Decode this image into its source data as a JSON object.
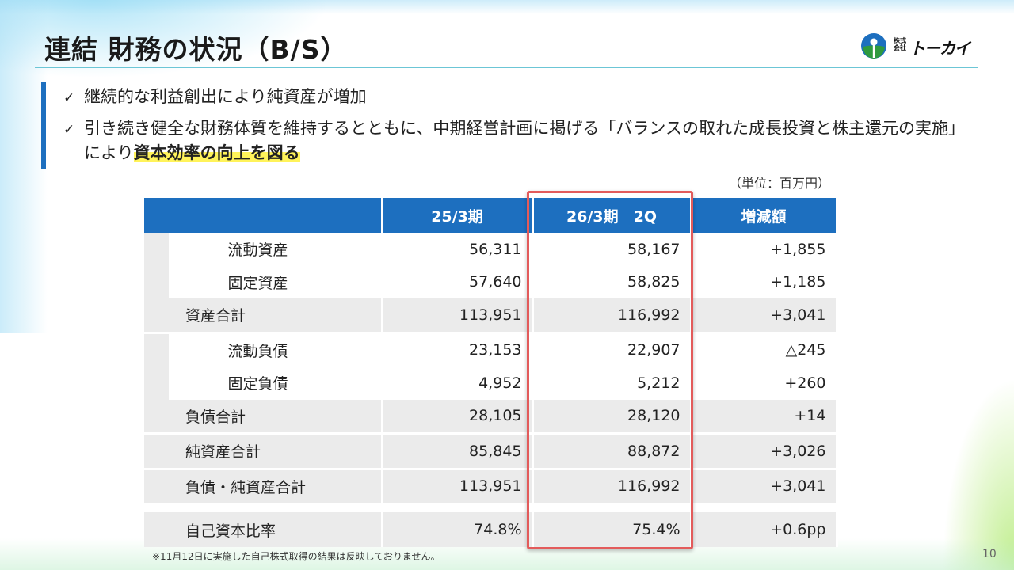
{
  "title": "連結 財務の状況（B/S）",
  "logo": {
    "sub": "株式会社",
    "name": "トーカイ"
  },
  "bullets": [
    {
      "check": "✓",
      "text": "継続的な利益創出により純資産が増加",
      "highlight": ""
    },
    {
      "check": "✓",
      "text": "引き続き健全な財務体質を維持するとともに、中期経営計画に掲げる「バランスの取れた成長投資と株主還元の実施」により",
      "highlight": "資本効率の向上を図る"
    }
  ],
  "unit": "（単位：百万円）",
  "table": {
    "headers": [
      "",
      "25/3期",
      "26/3期　2Q",
      "増減額"
    ],
    "rows": [
      {
        "label": "流動資産",
        "prev": "56,311",
        "curr": "58,167",
        "diff": "+1,855"
      },
      {
        "label": "固定資産",
        "prev": "57,640",
        "curr": "58,825",
        "diff": "+1,185"
      },
      {
        "label": "資産合計",
        "prev": "113,951",
        "curr": "116,992",
        "diff": "+3,041"
      },
      {
        "label": "流動負債",
        "prev": "23,153",
        "curr": "22,907",
        "diff": "△245"
      },
      {
        "label": "固定負債",
        "prev": "4,952",
        "curr": "5,212",
        "diff": "+260"
      },
      {
        "label": "負債合計",
        "prev": "28,105",
        "curr": "28,120",
        "diff": "+14"
      },
      {
        "label": "純資産合計",
        "prev": "85,845",
        "curr": "88,872",
        "diff": "+3,026"
      },
      {
        "label": "負債・純資産合計",
        "prev": "113,951",
        "curr": "116,992",
        "diff": "+3,041"
      },
      {
        "label": "自己資本比率",
        "prev": "74.8%",
        "curr": "75.4%",
        "diff": "+0.6pp"
      }
    ]
  },
  "footnote": "※11月12日に実施した自己株式取得の結果は反映しておりません。",
  "page_number": "10",
  "colors": {
    "header_blue": "#1d6fbf",
    "accent_line": "#6cc6d6",
    "highlight_box": "#e35b5b",
    "marker_yellow": "#fff35a"
  }
}
